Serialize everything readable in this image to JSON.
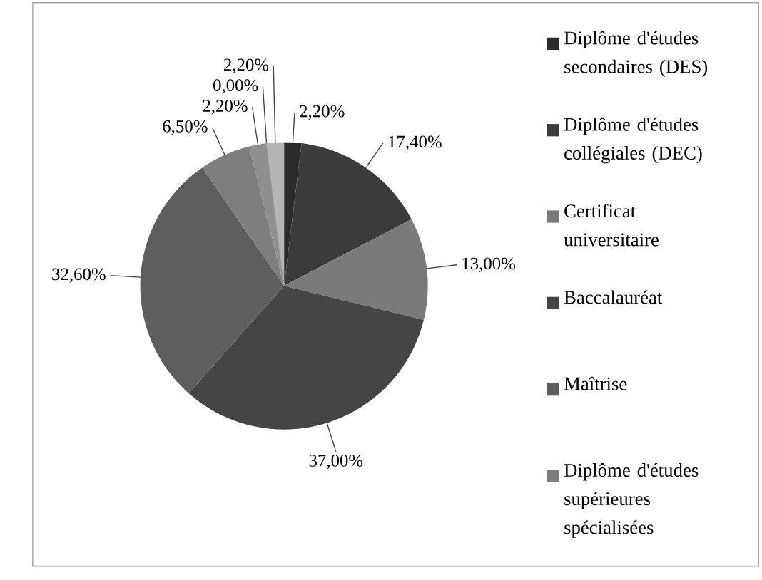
{
  "chart_data": {
    "type": "pie",
    "categories": [
      "Diplôme d'études secondaires (DES)",
      "Diplôme d'études collégiales (DEC)",
      "Certificat universitaire",
      "Baccalauréat",
      "Maîtrise",
      "Diplôme d'études supérieures spécialisées",
      null,
      null,
      null
    ],
    "values": [
      2.2,
      17.4,
      13,
      37,
      32.6,
      6.5,
      2.2,
      0,
      2.2
    ],
    "colors": [
      "#2b2b2b",
      "#3c3c3c",
      "#7a7a7a",
      "#454545",
      "#5e5e5e",
      "#7e7e7e",
      "#8f8f8f",
      "#9c9c9c",
      "#b5b5b5"
    ],
    "value_labels": [
      "2,20%",
      "17,40%",
      "13,00%",
      "37,00%",
      "32,60%",
      "6,50%",
      "2,20%",
      "0,00%",
      "2,20%"
    ],
    "legend": "right"
  }
}
